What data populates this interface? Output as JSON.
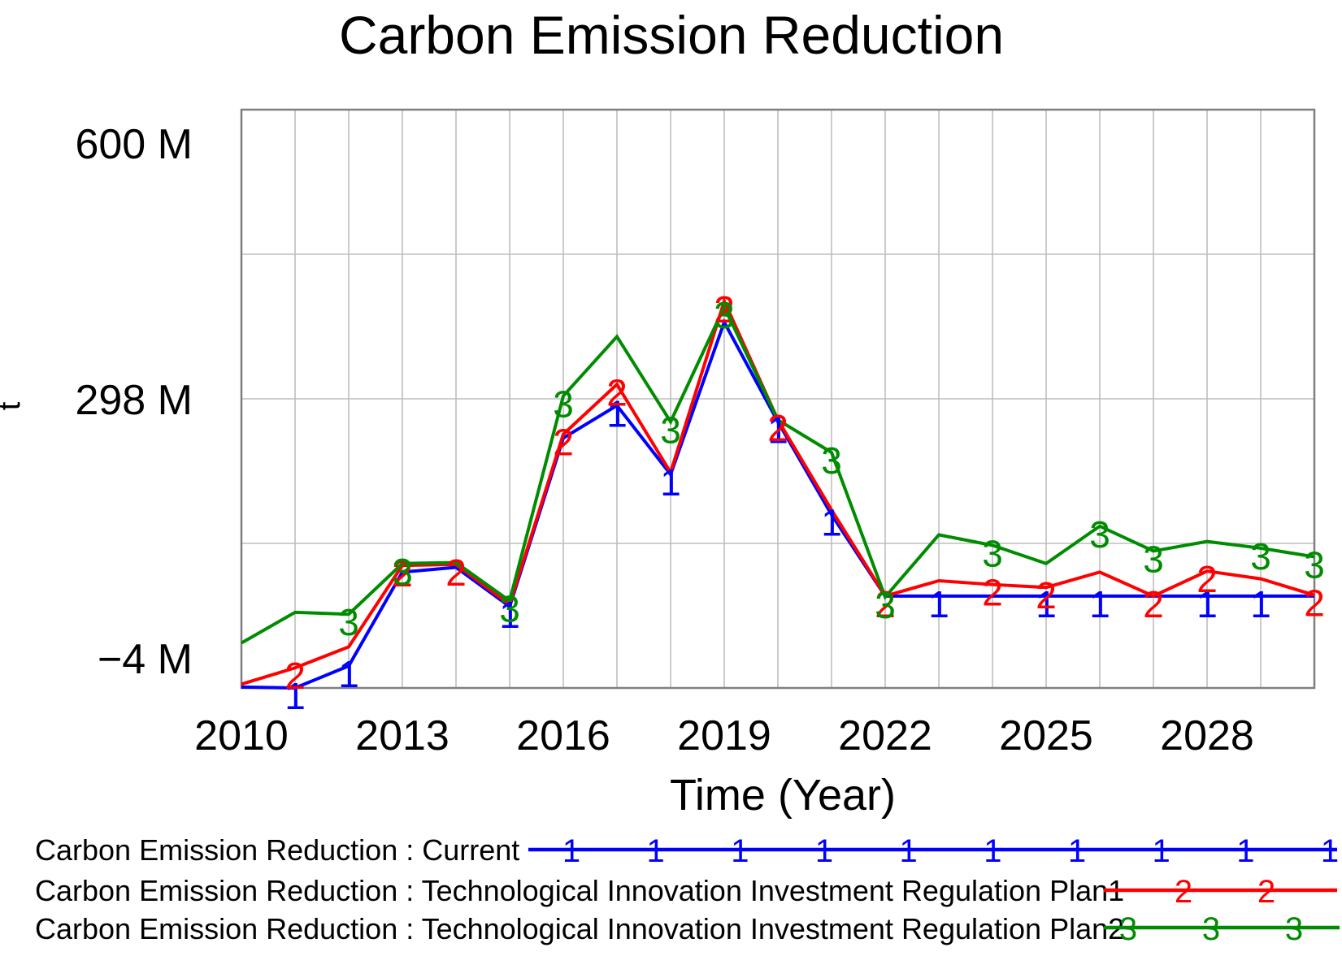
{
  "title": "Carbon Emission Reduction",
  "axes": {
    "x_label": "Time (Year)",
    "y_unit": "t",
    "x_ticks": [
      2010,
      2013,
      2016,
      2019,
      2022,
      2025,
      2028
    ],
    "y_ticks": [
      {
        "label": "600 M",
        "value_M": 600
      },
      {
        "label": "298 M",
        "value_M": 298
      },
      {
        "label": "−4 M",
        "value_M": -4
      }
    ]
  },
  "chart_data": {
    "type": "line",
    "x": [
      2010,
      2011,
      2012,
      2013,
      2014,
      2015,
      2016,
      2017,
      2018,
      2019,
      2020,
      2021,
      2022,
      2023,
      2024,
      2025,
      2026,
      2027,
      2028,
      2029,
      2030
    ],
    "x_range": [
      2010,
      2030
    ],
    "y_range_M": [
      -4,
      600
    ],
    "y_gridlines_M": [
      -4,
      147,
      298,
      449,
      600
    ],
    "grid": true,
    "value_unit": "t (values in millions)",
    "series": [
      {
        "name": "Current",
        "marker": "1",
        "color": "#0000ff",
        "values_M": [
          -3,
          -4,
          19,
          117,
          122,
          81,
          257,
          291,
          219,
          378,
          274,
          177,
          92,
          92,
          92,
          92,
          92,
          92,
          92,
          92,
          92
        ],
        "marker_years": [
          2011,
          2012,
          2015,
          2017,
          2018,
          2020,
          2021,
          2023,
          2025,
          2026,
          2028,
          2029
        ]
      },
      {
        "name": "Technological Innovation Investment Regulation Plan1",
        "marker": "2",
        "color": "#ff0000",
        "values_M": [
          0,
          17,
          39,
          124,
          125,
          83,
          261,
          313,
          221,
          400,
          276,
          182,
          92,
          108,
          104,
          101,
          117,
          92,
          118,
          110,
          93
        ],
        "marker_years": [
          2011,
          2013,
          2014,
          2016,
          2017,
          2019,
          2020,
          2022,
          2024,
          2025,
          2027,
          2028,
          2030
        ]
      },
      {
        "name": "Technological Innovation Investment Regulation Plan2",
        "marker": "3",
        "color": "#008c00",
        "values_M": [
          43,
          75,
          73,
          126,
          127,
          87,
          301,
          363,
          274,
          394,
          276,
          242,
          91,
          156,
          145,
          126,
          165,
          139,
          149,
          142,
          133
        ],
        "marker_years": [
          2012,
          2013,
          2015,
          2016,
          2018,
          2019,
          2021,
          2022,
          2024,
          2026,
          2027,
          2029,
          2030
        ]
      }
    ]
  },
  "legend": {
    "items": [
      {
        "label": "Carbon Emission Reduction : Current",
        "marker": "1",
        "color": "#0000ff",
        "marker_count": 10
      },
      {
        "label": "Carbon Emission Reduction : Technological Innovation Investment Regulation Plan1",
        "marker": "2",
        "color": "#ff0000",
        "marker_count": 2
      },
      {
        "label": "Carbon Emission Reduction : Technological Innovation Investment Regulation Plan2",
        "marker": "3",
        "color": "#008c00",
        "marker_count": 3
      }
    ]
  },
  "colors": {
    "grid": "#bebebe",
    "border": "#7f7f7f",
    "background": "#ffffff"
  }
}
